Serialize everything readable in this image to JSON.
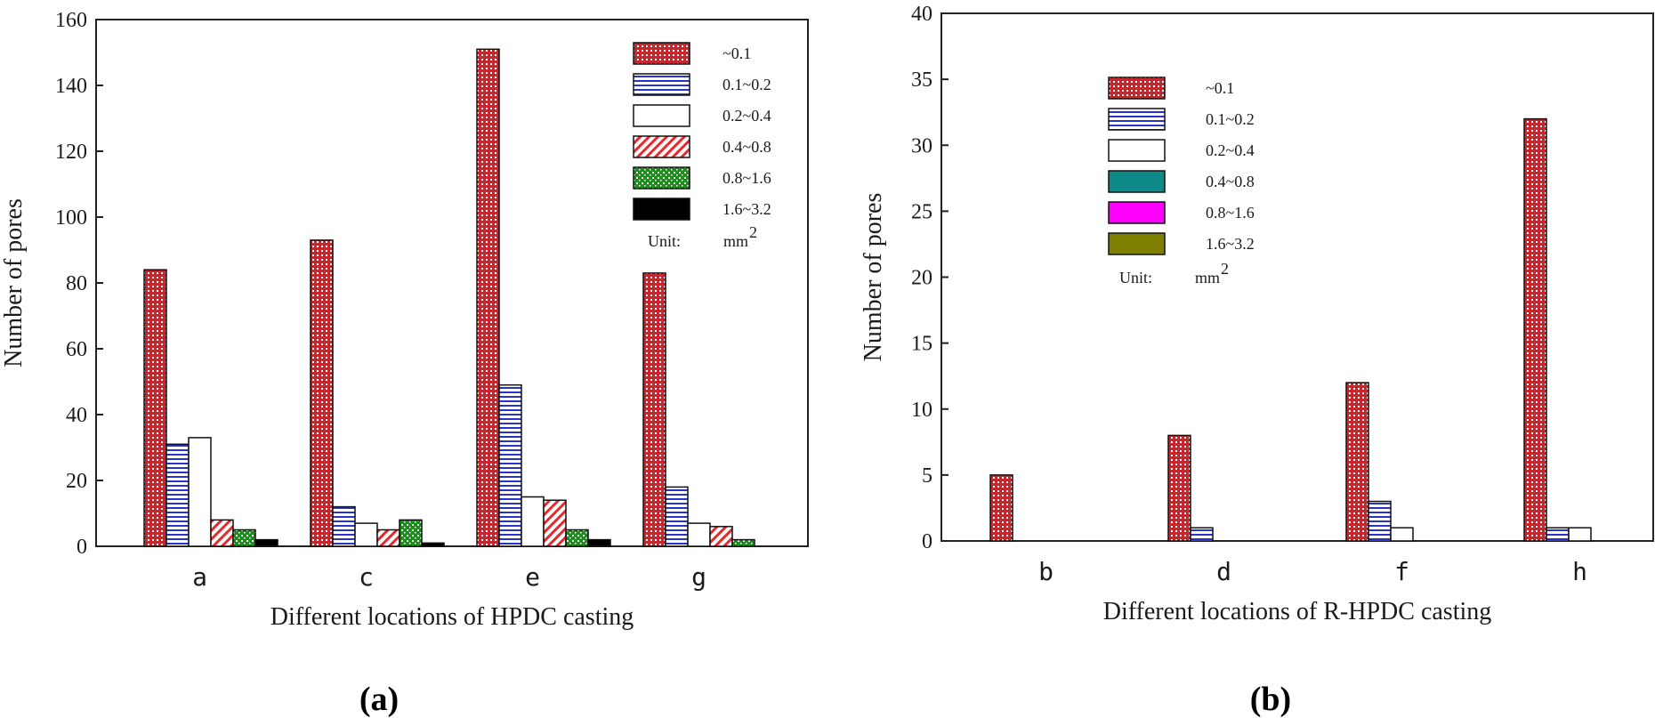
{
  "chart_data": [
    {
      "type": "bar",
      "panel_label": "a",
      "xlabel": "Different locations of HPDC casting",
      "ylabel": "Number of pores",
      "ylim": [
        0,
        160
      ],
      "yticks": [
        0,
        20,
        40,
        60,
        80,
        100,
        120,
        140,
        160
      ],
      "categories": [
        "a",
        "c",
        "e",
        "g"
      ],
      "series": [
        {
          "name": "~0.1",
          "values": [
            84,
            93,
            151,
            83
          ]
        },
        {
          "name": "0.1~0.2",
          "values": [
            31,
            12,
            49,
            18
          ]
        },
        {
          "name": "0.2~0.4",
          "values": [
            33,
            7,
            15,
            7
          ]
        },
        {
          "name": "0.4~0.8",
          "values": [
            8,
            5,
            14,
            6
          ]
        },
        {
          "name": "0.8~1.6",
          "values": [
            5,
            8,
            5,
            2
          ]
        },
        {
          "name": "1.6~3.2",
          "values": [
            2,
            1,
            2,
            0
          ]
        }
      ],
      "legend": {
        "position": "top-right",
        "unit_label": "Unit:",
        "unit": "mm",
        "unit_exp": "2"
      }
    },
    {
      "type": "bar",
      "panel_label": "b",
      "xlabel": "Different locations of R-HPDC casting",
      "ylabel": "Number of pores",
      "ylim": [
        0,
        40
      ],
      "yticks": [
        0,
        5,
        10,
        15,
        20,
        25,
        30,
        35,
        40
      ],
      "categories": [
        "b",
        "d",
        "f",
        "h"
      ],
      "series": [
        {
          "name": "~0.1",
          "values": [
            5,
            8,
            12,
            32
          ]
        },
        {
          "name": "0.1~0.2",
          "values": [
            0,
            1,
            3,
            1
          ]
        },
        {
          "name": "0.2~0.4",
          "values": [
            0,
            0,
            1,
            1
          ]
        },
        {
          "name": "0.4~0.8",
          "values": [
            0,
            0,
            0,
            0
          ]
        },
        {
          "name": "0.8~1.6",
          "values": [
            0,
            0,
            0,
            0
          ]
        },
        {
          "name": "1.6~3.2",
          "values": [
            0,
            0,
            0,
            0
          ]
        }
      ],
      "legend": {
        "position": "top-left",
        "unit_label": "Unit:",
        "unit": "mm",
        "unit_exp": "2"
      }
    }
  ],
  "colors": {
    "series_a": [
      "#b01c22",
      "#2733c9",
      "#ffffff",
      "#e8282c",
      "#1a8f1a",
      "#000000"
    ],
    "series_b": [
      "#b01c22",
      "#2733c9",
      "#ffffff",
      "#0f8a8a",
      "#ff00ff",
      "#7f7f00"
    ]
  },
  "labels": {
    "panel_a": "(a)",
    "panel_b": "(b)"
  }
}
